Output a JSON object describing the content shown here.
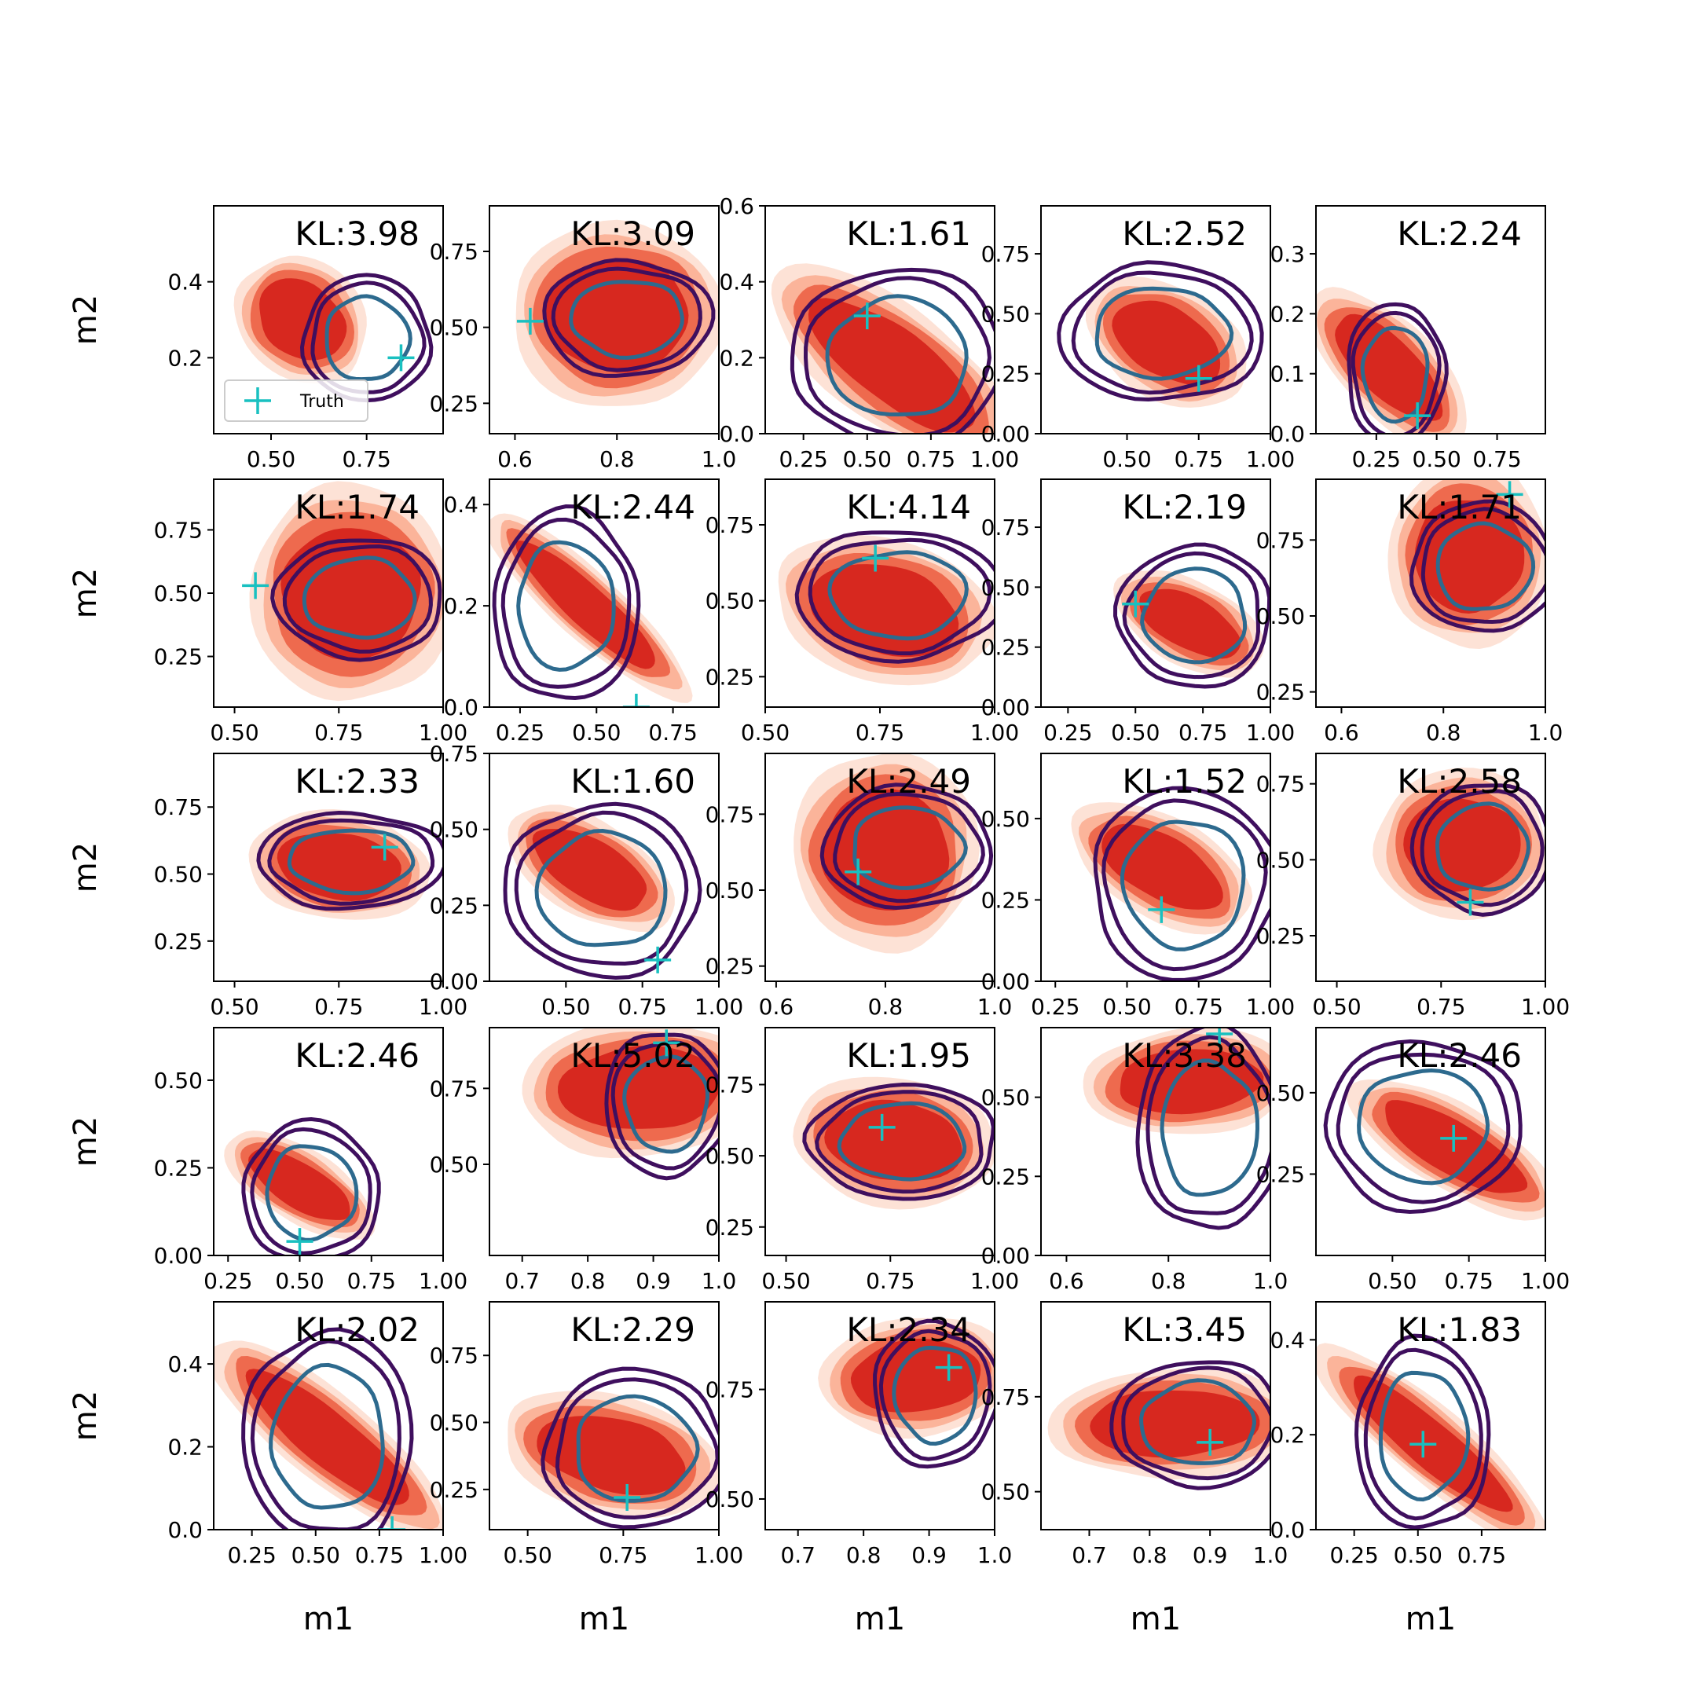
{
  "chart_data": {
    "type": "contour-grid",
    "rows": 5,
    "cols": 5,
    "xlabel": "m1",
    "ylabel": "m2",
    "legend": {
      "label": "Truth",
      "placement": "lower-left of first panel"
    },
    "colors": {
      "reference_fill_dark": "#d7281f",
      "reference_fill_mid": "#ee6a4e",
      "reference_fill_light": "#fbb49a",
      "reference_fill_lightest": "#fde2d6",
      "contour_outer": "#3f0f5e",
      "contour_inner": "#2d6a8e",
      "truth_marker": "#19c0c0"
    },
    "panels": [
      {
        "kl": "KL:3.98",
        "xlim": [
          0.35,
          0.95
        ],
        "ylim": [
          0.0,
          0.6
        ],
        "xticks": [
          "0.50",
          "0.75"
        ],
        "yticks": [
          "0.2",
          "0.4"
        ],
        "truth": [
          0.84,
          0.2
        ],
        "ref": {
          "c": [
            0.58,
            0.3
          ],
          "rx": 0.15,
          "ry": 0.12,
          "slope": -0.8
        },
        "est": {
          "c": [
            0.75,
            0.25
          ],
          "rx": 0.14,
          "ry": 0.14
        }
      },
      {
        "kl": "KL:3.09",
        "xlim": [
          0.55,
          1.0
        ],
        "ylim": [
          0.15,
          0.9
        ],
        "xticks": [
          "0.6",
          "0.8",
          "1.0"
        ],
        "yticks": [
          "0.25",
          "0.50",
          "0.75"
        ],
        "truth": [
          0.63,
          0.52
        ],
        "ref": {
          "c": [
            0.8,
            0.54
          ],
          "rx": 0.17,
          "ry": 0.14,
          "slope": 0.0
        },
        "est": {
          "c": [
            0.82,
            0.53
          ],
          "rx": 0.14,
          "ry": 0.16
        }
      },
      {
        "kl": "KL:1.61",
        "xlim": [
          0.1,
          1.0
        ],
        "ylim": [
          0.0,
          0.6
        ],
        "xticks": [
          "0.25",
          "0.50",
          "0.75",
          "1.00"
        ],
        "yticks": [
          "0.0",
          "0.2",
          "0.4",
          "0.6"
        ],
        "truth": [
          0.5,
          0.31
        ],
        "ref": {
          "c": [
            0.6,
            0.18
          ],
          "rx": 0.32,
          "ry": 0.12,
          "slope": -0.5
        },
        "est": {
          "c": [
            0.62,
            0.2
          ],
          "rx": 0.35,
          "ry": 0.2
        }
      },
      {
        "kl": "KL:2.52",
        "xlim": [
          0.2,
          1.0
        ],
        "ylim": [
          0.0,
          0.95
        ],
        "xticks": [
          "0.50",
          "0.75",
          "1.00"
        ],
        "yticks": [
          "0.00",
          "0.25",
          "0.50",
          "0.75"
        ],
        "truth": [
          0.75,
          0.23
        ],
        "ref": {
          "c": [
            0.64,
            0.38
          ],
          "rx": 0.25,
          "ry": 0.15,
          "slope": -0.7
        },
        "est": {
          "c": [
            0.62,
            0.42
          ],
          "rx": 0.3,
          "ry": 0.24
        }
      },
      {
        "kl": "KL:2.24",
        "xlim": [
          0.0,
          0.95
        ],
        "ylim": [
          0.0,
          0.38
        ],
        "xticks": [
          "0.25",
          "0.50",
          "0.75"
        ],
        "yticks": [
          "0.0",
          "0.1",
          "0.2",
          "0.3"
        ],
        "truth": [
          0.42,
          0.03
        ],
        "ref": {
          "c": [
            0.3,
            0.11
          ],
          "rx": 0.14,
          "ry": 0.06,
          "slope": -0.4
        },
        "est": {
          "c": [
            0.33,
            0.1
          ],
          "rx": 0.17,
          "ry": 0.1
        }
      },
      {
        "kl": "KL:1.74",
        "xlim": [
          0.45,
          1.0
        ],
        "ylim": [
          0.05,
          0.95
        ],
        "xticks": [
          "0.50",
          "0.75",
          "1.00"
        ],
        "yticks": [
          "0.25",
          "0.50",
          "0.75"
        ],
        "truth": [
          0.55,
          0.53
        ],
        "ref": {
          "c": [
            0.78,
            0.5
          ],
          "rx": 0.2,
          "ry": 0.2,
          "slope": 0.0
        },
        "est": {
          "c": [
            0.8,
            0.48
          ],
          "rx": 0.17,
          "ry": 0.2
        }
      },
      {
        "kl": "KL:2.44",
        "xlim": [
          0.15,
          0.9
        ],
        "ylim": [
          0.0,
          0.45
        ],
        "xticks": [
          "0.25",
          "0.50",
          "0.75"
        ],
        "yticks": [
          "0.0",
          "0.2",
          "0.4"
        ],
        "truth": [
          0.63,
          0.0
        ],
        "ref": {
          "c": [
            0.47,
            0.2
          ],
          "rx": 0.22,
          "ry": 0.05,
          "slope": -0.55
        },
        "est": {
          "c": [
            0.4,
            0.2
          ],
          "rx": 0.2,
          "ry": 0.16
        }
      },
      {
        "kl": "KL:4.14",
        "xlim": [
          0.5,
          1.0
        ],
        "ylim": [
          0.15,
          0.9
        ],
        "xticks": [
          "0.50",
          "0.75",
          "1.00"
        ],
        "yticks": [
          "0.25",
          "0.50",
          "0.75"
        ],
        "truth": [
          0.74,
          0.64
        ],
        "ref": {
          "c": [
            0.76,
            0.47
          ],
          "rx": 0.2,
          "ry": 0.12,
          "slope": -0.4
        },
        "est": {
          "c": [
            0.79,
            0.52
          ],
          "rx": 0.19,
          "ry": 0.18
        }
      },
      {
        "kl": "KL:2.19",
        "xlim": [
          0.15,
          1.0
        ],
        "ylim": [
          0.0,
          0.95
        ],
        "xticks": [
          "0.25",
          "0.50",
          "0.75",
          "1.00"
        ],
        "yticks": [
          "0.00",
          "0.25",
          "0.50",
          "0.75"
        ],
        "truth": [
          0.5,
          0.43
        ],
        "ref": {
          "c": [
            0.7,
            0.35
          ],
          "rx": 0.25,
          "ry": 0.12,
          "slope": -0.6
        },
        "est": {
          "c": [
            0.72,
            0.38
          ],
          "rx": 0.24,
          "ry": 0.25
        }
      },
      {
        "kl": "KL:1.71",
        "xlim": [
          0.55,
          1.0
        ],
        "ylim": [
          0.2,
          0.95
        ],
        "xticks": [
          "0.6",
          "0.8",
          "1.0"
        ],
        "yticks": [
          "0.25",
          "0.50",
          "0.75"
        ],
        "truth": [
          0.93,
          0.9
        ],
        "ref": {
          "c": [
            0.85,
            0.7
          ],
          "rx": 0.13,
          "ry": 0.14,
          "slope": 0.0
        },
        "est": {
          "c": [
            0.88,
            0.66
          ],
          "rx": 0.12,
          "ry": 0.18
        }
      },
      {
        "kl": "KL:2.33",
        "xlim": [
          0.45,
          1.0
        ],
        "ylim": [
          0.1,
          0.95
        ],
        "xticks": [
          "0.50",
          "0.75",
          "1.00"
        ],
        "yticks": [
          "0.25",
          "0.50",
          "0.75"
        ],
        "truth": [
          0.86,
          0.6
        ],
        "ref": {
          "c": [
            0.75,
            0.53
          ],
          "rx": 0.18,
          "ry": 0.1,
          "slope": -0.2
        },
        "est": {
          "c": [
            0.78,
            0.55
          ],
          "rx": 0.19,
          "ry": 0.15
        }
      },
      {
        "kl": "KL:1.60",
        "xlim": [
          0.25,
          1.0
        ],
        "ylim": [
          0.0,
          0.75
        ],
        "xticks": [
          "0.50",
          "0.75",
          "1.00"
        ],
        "yticks": [
          "0.00",
          "0.25",
          "0.50",
          "0.75"
        ],
        "truth": [
          0.8,
          0.07
        ],
        "ref": {
          "c": [
            0.58,
            0.37
          ],
          "rx": 0.25,
          "ry": 0.12,
          "slope": -0.6
        },
        "est": {
          "c": [
            0.62,
            0.3
          ],
          "rx": 0.27,
          "ry": 0.24
        }
      },
      {
        "kl": "KL:2.49",
        "xlim": [
          0.58,
          1.0
        ],
        "ylim": [
          0.2,
          0.95
        ],
        "xticks": [
          "0.6",
          "0.8",
          "1.0"
        ],
        "yticks": [
          "0.25",
          "0.50",
          "0.75"
        ],
        "truth": [
          0.75,
          0.56
        ],
        "ref": {
          "c": [
            0.8,
            0.63
          ],
          "rx": 0.14,
          "ry": 0.14,
          "slope": 0.0
        },
        "est": {
          "c": [
            0.84,
            0.64
          ],
          "rx": 0.13,
          "ry": 0.17
        }
      },
      {
        "kl": "KL:1.52",
        "xlim": [
          0.2,
          1.0
        ],
        "ylim": [
          0.0,
          0.7
        ],
        "xticks": [
          "0.25",
          "0.50",
          "0.75",
          "1.00"
        ],
        "yticks": [
          "0.00",
          "0.25",
          "0.50"
        ],
        "truth": [
          0.62,
          0.22
        ],
        "ref": {
          "c": [
            0.62,
            0.35
          ],
          "rx": 0.25,
          "ry": 0.12,
          "slope": -0.5
        },
        "est": {
          "c": [
            0.7,
            0.3
          ],
          "rx": 0.27,
          "ry": 0.25
        }
      },
      {
        "kl": "KL:2.58",
        "xlim": [
          0.45,
          1.0
        ],
        "ylim": [
          0.1,
          0.85
        ],
        "xticks": [
          "0.50",
          "0.75",
          "1.00"
        ],
        "yticks": [
          "0.25",
          "0.50",
          "0.75"
        ],
        "truth": [
          0.82,
          0.36
        ],
        "ref": {
          "c": [
            0.8,
            0.55
          ],
          "rx": 0.17,
          "ry": 0.14,
          "slope": 0.0
        },
        "est": {
          "c": [
            0.85,
            0.54
          ],
          "rx": 0.14,
          "ry": 0.18
        }
      },
      {
        "kl": "KL:2.46",
        "xlim": [
          0.2,
          1.0
        ],
        "ylim": [
          0.0,
          0.65
        ],
        "xticks": [
          "0.25",
          "0.50",
          "0.75",
          "1.00"
        ],
        "yticks": [
          "0.00",
          "0.25",
          "0.50"
        ],
        "truth": [
          0.5,
          0.04
        ],
        "ref": {
          "c": [
            0.5,
            0.2
          ],
          "rx": 0.2,
          "ry": 0.08,
          "slope": -0.5
        },
        "est": {
          "c": [
            0.54,
            0.18
          ],
          "rx": 0.2,
          "ry": 0.17
        }
      },
      {
        "kl": "KL:5.02",
        "xlim": [
          0.65,
          1.0
        ],
        "ylim": [
          0.2,
          0.95
        ],
        "xticks": [
          "0.7",
          "0.8",
          "0.9",
          "1.0"
        ],
        "yticks": [
          "0.50",
          "0.75"
        ],
        "truth": [
          0.92,
          0.9
        ],
        "ref": {
          "c": [
            0.88,
            0.75
          ],
          "rx": 0.15,
          "ry": 0.08,
          "slope": 0.1
        },
        "est": {
          "c": [
            0.92,
            0.7
          ],
          "rx": 0.08,
          "ry": 0.2
        }
      },
      {
        "kl": "KL:1.95",
        "xlim": [
          0.45,
          1.0
        ],
        "ylim": [
          0.15,
          0.95
        ],
        "xticks": [
          "0.50",
          "0.75",
          "1.00"
        ],
        "yticks": [
          "0.25",
          "0.50",
          "0.75"
        ],
        "truth": [
          0.73,
          0.6
        ],
        "ref": {
          "c": [
            0.76,
            0.55
          ],
          "rx": 0.2,
          "ry": 0.12,
          "slope": -0.2
        },
        "est": {
          "c": [
            0.78,
            0.55
          ],
          "rx": 0.19,
          "ry": 0.17
        }
      },
      {
        "kl": "KL:3.38",
        "xlim": [
          0.55,
          1.0
        ],
        "ylim": [
          0.0,
          0.72
        ],
        "xticks": [
          "0.6",
          "0.8",
          "1.0"
        ],
        "yticks": [
          "0.00",
          "0.25",
          "0.50"
        ],
        "truth": [
          0.9,
          0.7
        ],
        "ref": {
          "c": [
            0.84,
            0.55
          ],
          "rx": 0.17,
          "ry": 0.08,
          "slope": 0.1
        },
        "est": {
          "c": [
            0.88,
            0.4
          ],
          "rx": 0.12,
          "ry": 0.27
        }
      },
      {
        "kl": "KL:2.46",
        "xlim": [
          0.25,
          1.0
        ],
        "ylim": [
          0.0,
          0.7
        ],
        "xticks": [
          "0.50",
          "0.75",
          "1.00"
        ],
        "yticks": [
          "0.25",
          "0.50"
        ],
        "truth": [
          0.7,
          0.36
        ],
        "ref": {
          "c": [
            0.7,
            0.33
          ],
          "rx": 0.3,
          "ry": 0.1,
          "slope": -0.55
        },
        "est": {
          "c": [
            0.6,
            0.4
          ],
          "rx": 0.27,
          "ry": 0.22
        }
      },
      {
        "kl": "KL:2.02",
        "xlim": [
          0.1,
          1.0
        ],
        "ylim": [
          0.0,
          0.55
        ],
        "xticks": [
          "0.25",
          "0.50",
          "0.75",
          "1.00"
        ],
        "yticks": [
          "0.0",
          "0.2",
          "0.4"
        ],
        "truth": [
          0.8,
          0.0
        ],
        "ref": {
          "c": [
            0.55,
            0.22
          ],
          "rx": 0.3,
          "ry": 0.08,
          "slope": -0.5
        },
        "est": {
          "c": [
            0.55,
            0.22
          ],
          "rx": 0.28,
          "ry": 0.22
        }
      },
      {
        "kl": "KL:2.29",
        "xlim": [
          0.4,
          1.0
        ],
        "ylim": [
          0.1,
          0.95
        ],
        "xticks": [
          "0.50",
          "0.75",
          "1.00"
        ],
        "yticks": [
          "0.25",
          "0.50",
          "0.75"
        ],
        "truth": [
          0.76,
          0.22
        ],
        "ref": {
          "c": [
            0.72,
            0.38
          ],
          "rx": 0.24,
          "ry": 0.12,
          "slope": -0.35
        },
        "est": {
          "c": [
            0.78,
            0.4
          ],
          "rx": 0.2,
          "ry": 0.25
        }
      },
      {
        "kl": "KL:2.34",
        "xlim": [
          0.65,
          1.0
        ],
        "ylim": [
          0.43,
          0.95
        ],
        "xticks": [
          "0.7",
          "0.8",
          "0.9",
          "1.0"
        ],
        "yticks": [
          "0.50",
          "0.75"
        ],
        "truth": [
          0.93,
          0.8
        ],
        "ref": {
          "c": [
            0.88,
            0.78
          ],
          "rx": 0.12,
          "ry": 0.07,
          "slope": 0.15
        },
        "est": {
          "c": [
            0.91,
            0.74
          ],
          "rx": 0.08,
          "ry": 0.14
        }
      },
      {
        "kl": "KL:3.45",
        "xlim": [
          0.62,
          1.0
        ],
        "ylim": [
          0.4,
          1.0
        ],
        "xticks": [
          "0.7",
          "0.8",
          "0.9",
          "1.0"
        ],
        "yticks": [
          "0.50",
          "0.75"
        ],
        "truth": [
          0.9,
          0.63
        ],
        "ref": {
          "c": [
            0.84,
            0.68
          ],
          "rx": 0.17,
          "ry": 0.07,
          "slope": 0.05
        },
        "est": {
          "c": [
            0.88,
            0.68
          ],
          "rx": 0.12,
          "ry": 0.14
        }
      },
      {
        "kl": "KL:1.83",
        "xlim": [
          0.1,
          1.0
        ],
        "ylim": [
          0.0,
          0.48
        ],
        "xticks": [
          "0.25",
          "0.50",
          "0.75"
        ],
        "yticks": [
          "0.0",
          "0.2",
          "0.4"
        ],
        "truth": [
          0.52,
          0.18
        ],
        "ref": {
          "c": [
            0.55,
            0.18
          ],
          "rx": 0.26,
          "ry": 0.06,
          "slope": -0.45
        },
        "est": {
          "c": [
            0.52,
            0.2
          ],
          "rx": 0.22,
          "ry": 0.17
        }
      }
    ]
  }
}
